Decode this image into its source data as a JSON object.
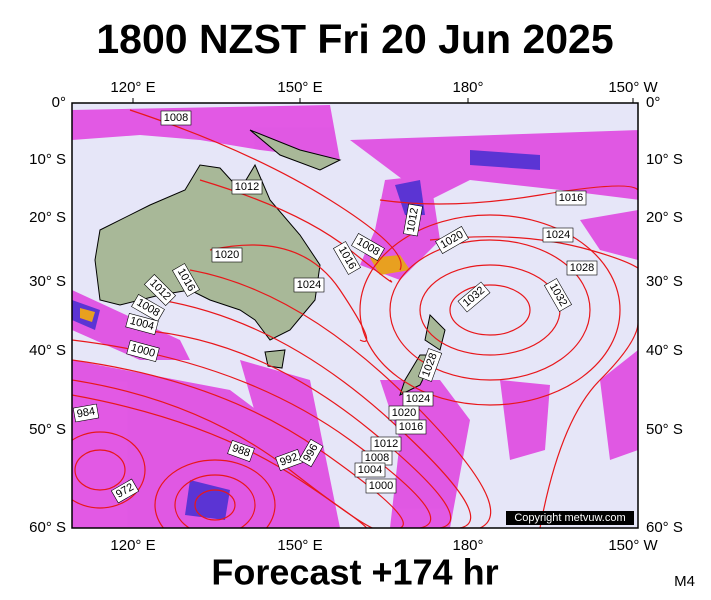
{
  "title": "1800 NZST Fri 20 Jun 2025",
  "footer": "Forecast +174 hr",
  "code": "M4",
  "copyright": "Copyright metvuw.com",
  "longitude_labels": [
    "120° E",
    "150° E",
    "180°",
    "150° W"
  ],
  "latitude_labels": [
    "0°",
    "10° S",
    "20° S",
    "30° S",
    "40° S",
    "50° S",
    "60° S"
  ],
  "isobar_labels": [
    "1008",
    "1012",
    "1012",
    "1016",
    "1020",
    "1020",
    "1024",
    "1028",
    "1016",
    "1016",
    "1008",
    "1012",
    "1008",
    "1004",
    "1000",
    "1024",
    "1032",
    "1032",
    "1028",
    "1024",
    "1020",
    "1016",
    "1012",
    "1008",
    "1004",
    "1000",
    "984",
    "988",
    "992",
    "996",
    "972"
  ]
}
